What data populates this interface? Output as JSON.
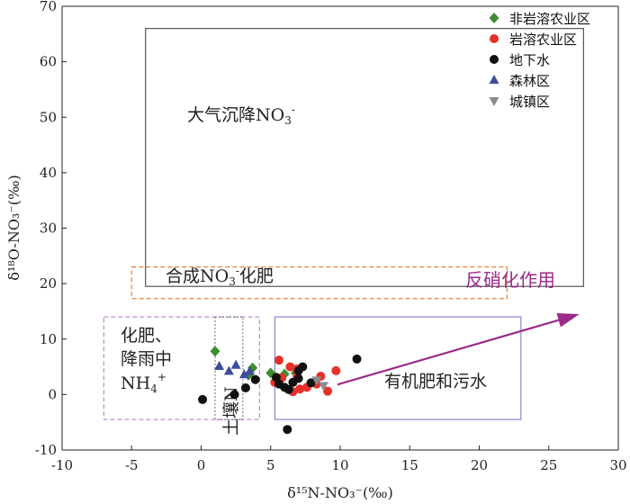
{
  "chart_data": {
    "type": "scatter",
    "xlabel": "δ¹⁵N-NO₃⁻(‰)",
    "ylabel": "δ¹⁸O-NO₃⁻(‰)",
    "xlim": [
      -10,
      30
    ],
    "ylim": [
      -10,
      70
    ],
    "x_ticks": [
      -10,
      -5,
      0,
      5,
      10,
      15,
      20,
      25,
      30
    ],
    "y_ticks": [
      -10,
      0,
      10,
      20,
      30,
      40,
      50,
      60,
      70
    ],
    "grid": false,
    "legend_position": "top-right",
    "series": [
      {
        "name": "非岩溶农业区",
        "marker": "diamond",
        "color": "#3c8d2f",
        "points": [
          [
            1.0,
            7.8
          ],
          [
            3.7,
            4.8
          ],
          [
            3.4,
            3.5
          ],
          [
            5.0,
            3.9
          ],
          [
            6.0,
            3.7
          ],
          [
            6.8,
            3.9
          ]
        ]
      },
      {
        "name": "岩溶农业区",
        "marker": "circle",
        "color": "#e8302a",
        "points": [
          [
            5.3,
            2.2
          ],
          [
            5.8,
            3.0
          ],
          [
            5.6,
            6.2
          ],
          [
            6.4,
            5.0
          ],
          [
            6.9,
            3.2
          ],
          [
            7.6,
            1.3
          ],
          [
            8.3,
            1.9
          ],
          [
            8.6,
            3.3
          ],
          [
            9.1,
            0.6
          ],
          [
            6.6,
            0.5
          ],
          [
            7.1,
            1.0
          ],
          [
            9.7,
            4.3
          ],
          [
            6.9,
            4.6
          ]
        ]
      },
      {
        "name": "地下水",
        "marker": "circle",
        "color": "#111111",
        "points": [
          [
            0.1,
            -0.9
          ],
          [
            2.4,
            0.0
          ],
          [
            3.2,
            1.2
          ],
          [
            3.9,
            2.7
          ],
          [
            5.4,
            3.1
          ],
          [
            5.6,
            1.9
          ],
          [
            6.0,
            1.3
          ],
          [
            6.3,
            0.9
          ],
          [
            6.6,
            2.2
          ],
          [
            7.0,
            2.9
          ],
          [
            7.0,
            4.3
          ],
          [
            7.3,
            5.0
          ],
          [
            7.9,
            2.1
          ],
          [
            6.2,
            -6.3
          ],
          [
            11.2,
            6.4
          ]
        ]
      },
      {
        "name": "森林区",
        "marker": "triangle-up",
        "color": "#3d4c9c",
        "points": [
          [
            1.3,
            5.1
          ],
          [
            2.0,
            4.2
          ],
          [
            2.5,
            5.3
          ],
          [
            3.1,
            3.6
          ],
          [
            3.5,
            4.2
          ]
        ]
      },
      {
        "name": "城镇区",
        "marker": "triangle-down",
        "color": "#8c8c8c",
        "points": [
          [
            8.3,
            2.6
          ],
          [
            8.8,
            1.6
          ]
        ]
      }
    ],
    "regions": [
      {
        "label": "大气沉降NO3-",
        "label_parts": [
          "大气沉降NO",
          "3",
          "-"
        ],
        "x": [
          -4,
          27.5
        ],
        "y": [
          19.5,
          66
        ],
        "style": "solid",
        "color": "#555555"
      },
      {
        "label": "合成NO3-化肥",
        "label_parts": [
          "合成NO",
          "3",
          "-",
          "化肥"
        ],
        "x": [
          -5,
          22
        ],
        "y": [
          17.3,
          23
        ],
        "style": "dashed",
        "color": "#e8833a"
      },
      {
        "label": "化肥、降雨中NH4+",
        "label_parts": [
          "化肥、",
          "降雨中",
          "NH",
          "4",
          "+"
        ],
        "x": [
          -7,
          4.2
        ],
        "y": [
          -4.5,
          14
        ],
        "style": "dashed",
        "color": "#c08ad6"
      },
      {
        "label": "土壤N",
        "x": [
          1,
          3
        ],
        "y": [
          -4.5,
          14
        ],
        "style": "dotted",
        "color": "#666666"
      },
      {
        "label": "有机肥和污水",
        "x": [
          5.3,
          23
        ],
        "y": [
          -4.5,
          14
        ],
        "style": "solid",
        "color": "#8c84cc"
      }
    ],
    "annotations": [
      {
        "text": "反硝化作用",
        "arrow_from": [
          9.8,
          1.8
        ],
        "arrow_to": [
          27.2,
          14.5
        ],
        "color": "#9b2a8a"
      }
    ]
  }
}
